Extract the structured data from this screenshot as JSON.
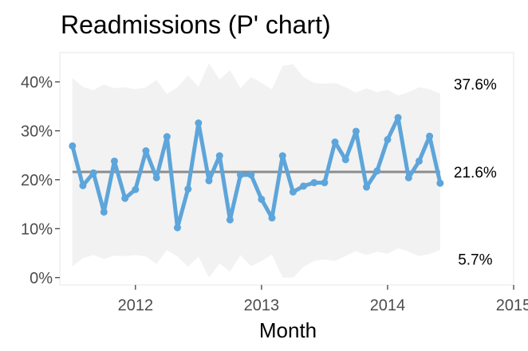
{
  "chart_data": {
    "type": "line",
    "title": "Readmissions (P' chart)",
    "xlabel": "Month",
    "ylabel": "",
    "x_ticks": [
      2012,
      2013,
      2014,
      2015
    ],
    "xlim": [
      2011.4,
      2015.0
    ],
    "y_ticks": [
      0,
      10,
      20,
      30,
      40
    ],
    "y_tick_labels": [
      "0%",
      "10%",
      "20%",
      "30%",
      "40%"
    ],
    "ylim": [
      -1.5,
      46
    ],
    "grid": false,
    "series": [
      {
        "x": [
          2011.5,
          2011.583,
          2011.667,
          2011.75,
          2011.833,
          2011.917,
          2012.0,
          2012.083,
          2012.167,
          2012.25,
          2012.333,
          2012.417,
          2012.5,
          2012.583,
          2012.667,
          2012.75,
          2012.833,
          2012.917,
          2013.0,
          2013.083,
          2013.167,
          2013.25,
          2013.333,
          2013.417,
          2013.5,
          2013.583,
          2013.667,
          2013.75,
          2013.833,
          2013.917,
          2014.0,
          2014.083,
          2014.167,
          2014.25,
          2014.333,
          2014.417
        ],
        "values": [
          26.9,
          18.8,
          21.4,
          13.4,
          23.8,
          16.2,
          18.0,
          25.9,
          20.4,
          28.8,
          10.2,
          18.1,
          31.6,
          19.8,
          24.9,
          11.8,
          21.0,
          21.0,
          16.0,
          12.2,
          24.9,
          17.5,
          18.7,
          19.4,
          19.4,
          27.7,
          24.1,
          29.9,
          18.5,
          21.8,
          28.2,
          32.7,
          20.4,
          23.8,
          28.9,
          19.3
        ],
        "color": "#5DA5DA"
      }
    ],
    "center_line": 21.6,
    "center_label": "21.6%",
    "upper_limit_label": "37.6%",
    "lower_limit_label": "5.7%",
    "upper_limit": [
      40.8,
      39.0,
      38.3,
      39.5,
      38.7,
      38.9,
      38.5,
      38.9,
      40.4,
      37.5,
      38.9,
      41.3,
      39.0,
      43.8,
      40.5,
      42.4,
      38.7,
      41.0,
      39.8,
      38.5,
      43.3,
      43.6,
      41.0,
      39.8,
      39.6,
      39.8,
      38.9,
      37.8,
      38.7,
      37.9,
      38.4,
      37.2,
      37.9,
      38.9,
      38.5,
      37.6
    ],
    "lower_limit": [
      2.2,
      4.0,
      4.6,
      3.8,
      4.5,
      4.4,
      4.6,
      4.3,
      2.8,
      5.6,
      4.3,
      2.2,
      4.3,
      0.0,
      2.9,
      1.2,
      4.6,
      2.3,
      3.4,
      4.7,
      0.0,
      0.0,
      2.2,
      3.4,
      3.7,
      3.4,
      4.4,
      5.4,
      4.6,
      5.3,
      4.9,
      6.0,
      5.3,
      4.4,
      4.8,
      5.7
    ],
    "band_color": "#F2F2F2",
    "center_color": "#8C8C8C"
  }
}
